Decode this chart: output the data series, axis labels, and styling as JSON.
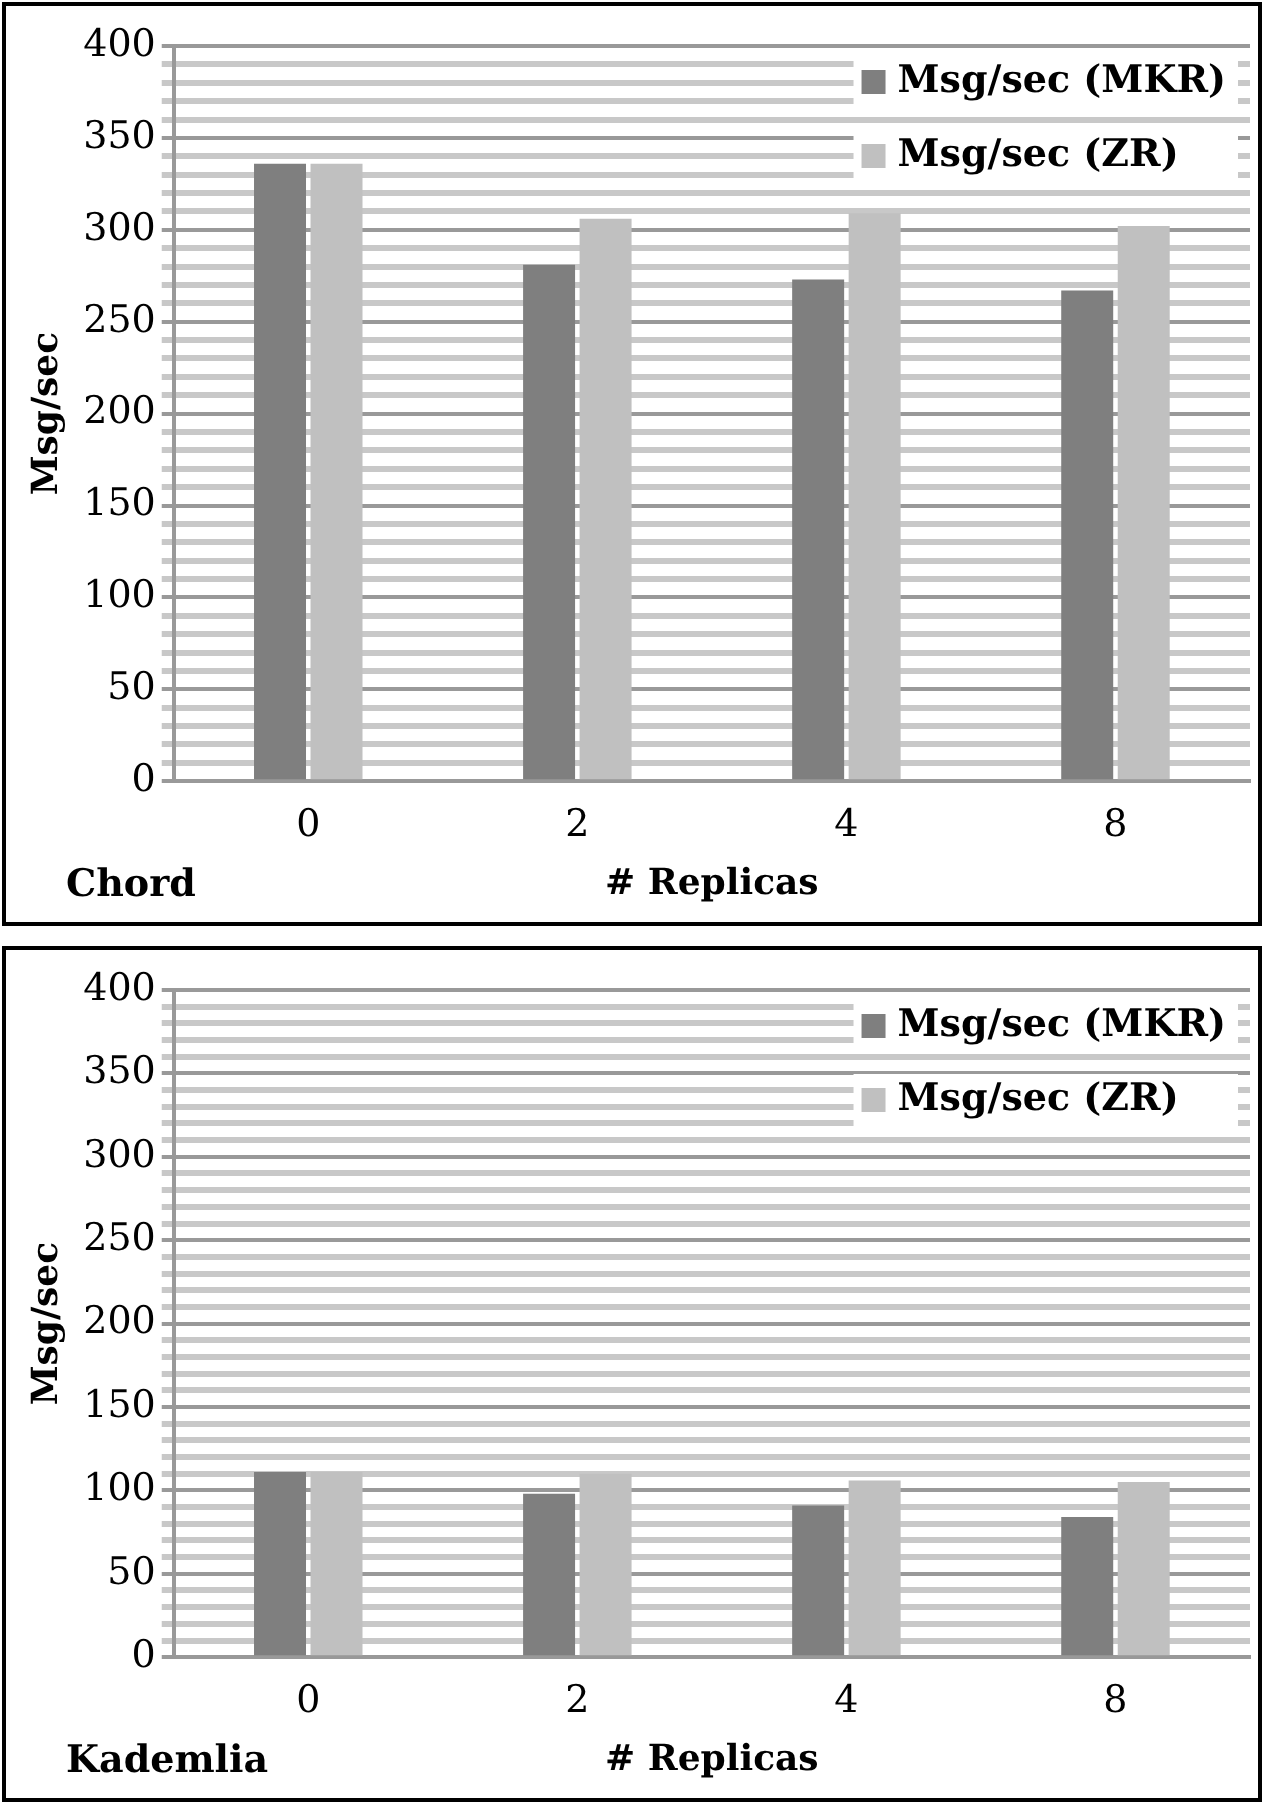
{
  "chart_data": [
    {
      "type": "bar",
      "ylabel": "Msg/sec",
      "xlabel": "# Replicas",
      "annotations": [
        "Chord"
      ],
      "categories": [
        "0",
        "2",
        "4",
        "8"
      ],
      "series": [
        {
          "name": "Msg/sec (MKR)",
          "color": "#7f7f7f",
          "values": [
            336,
            281,
            273,
            267
          ]
        },
        {
          "name": "Msg/sec (ZR)",
          "color": "#c0c0c0",
          "values": [
            336,
            306,
            309,
            302
          ]
        }
      ],
      "ylim": [
        0,
        400
      ],
      "yticks": [
        0,
        {
          "value": 10,
          "label": null
        },
        {
          "value": 20,
          "label": null
        },
        {
          "value": 30,
          "label": null
        },
        {
          "value": 40,
          "label": null
        },
        50,
        {
          "value": 60,
          "label": null
        },
        {
          "value": 70,
          "label": null
        },
        {
          "value": 80,
          "label": null
        },
        {
          "value": 90,
          "label": null
        },
        100,
        {
          "value": 110,
          "label": null
        },
        {
          "value": 120,
          "label": null
        },
        {
          "value": 130,
          "label": null
        },
        {
          "value": 140,
          "label": null
        },
        150,
        {
          "value": 160,
          "label": null
        },
        {
          "value": 170,
          "label": null
        },
        {
          "value": 180,
          "label": null
        },
        {
          "value": 190,
          "label": null
        },
        200,
        {
          "value": 210,
          "label": null
        },
        {
          "value": 220,
          "label": null
        },
        {
          "value": 230,
          "label": null
        },
        {
          "value": 240,
          "label": null
        },
        250,
        {
          "value": 260,
          "label": null
        },
        {
          "value": 270,
          "label": null
        },
        {
          "value": 280,
          "label": null
        },
        {
          "value": 290,
          "label": null
        },
        300,
        {
          "value": 310,
          "label": null
        },
        {
          "value": 320,
          "label": null
        },
        {
          "value": 330,
          "label": null
        },
        {
          "value": 340,
          "label": null
        },
        350,
        {
          "value": 360,
          "label": null
        },
        {
          "value": 370,
          "label": null
        },
        {
          "value": 380,
          "label": null
        },
        {
          "value": 390,
          "label": null
        },
        400
      ],
      "grid": "y",
      "legend": "top right"
    },
    {
      "type": "bar",
      "ylabel": "Msg/sec",
      "xlabel": "# Replicas",
      "annotations": [
        "Kademlia"
      ],
      "categories": [
        "0",
        "2",
        "4",
        "8"
      ],
      "series": [
        {
          "name": "Msg/sec (MKR)",
          "color": "#7f7f7f",
          "values": [
            111,
            98,
            91,
            84
          ]
        },
        {
          "name": "Msg/sec (ZR)",
          "color": "#c0c0c0",
          "values": [
            111,
            110,
            106,
            105
          ]
        }
      ],
      "ylim": [
        0,
        400
      ],
      "yticks": [
        0,
        {
          "value": 10,
          "label": null
        },
        {
          "value": 20,
          "label": null
        },
        {
          "value": 30,
          "label": null
        },
        {
          "value": 40,
          "label": null
        },
        50,
        {
          "value": 60,
          "label": null
        },
        {
          "value": 70,
          "label": null
        },
        {
          "value": 80,
          "label": null
        },
        {
          "value": 90,
          "label": null
        },
        100,
        {
          "value": 110,
          "label": null
        },
        {
          "value": 120,
          "label": null
        },
        {
          "value": 130,
          "label": null
        },
        {
          "value": 140,
          "label": null
        },
        150,
        {
          "value": 160,
          "label": null
        },
        {
          "value": 170,
          "label": null
        },
        {
          "value": 180,
          "label": null
        },
        {
          "value": 190,
          "label": null
        },
        200,
        {
          "value": 210,
          "label": null
        },
        {
          "value": 220,
          "label": null
        },
        {
          "value": 230,
          "label": null
        },
        {
          "value": 240,
          "label": null
        },
        250,
        {
          "value": 260,
          "label": null
        },
        {
          "value": 270,
          "label": null
        },
        {
          "value": 280,
          "label": null
        },
        {
          "value": 290,
          "label": null
        },
        300,
        {
          "value": 310,
          "label": null
        },
        {
          "value": 320,
          "label": null
        },
        {
          "value": 330,
          "label": null
        },
        {
          "value": 340,
          "label": null
        },
        350,
        {
          "value": 360,
          "label": null
        },
        {
          "value": 370,
          "label": null
        },
        {
          "value": 380,
          "label": null
        },
        {
          "value": 390,
          "label": null
        },
        400
      ],
      "grid": "y",
      "legend": "top right"
    }
  ]
}
